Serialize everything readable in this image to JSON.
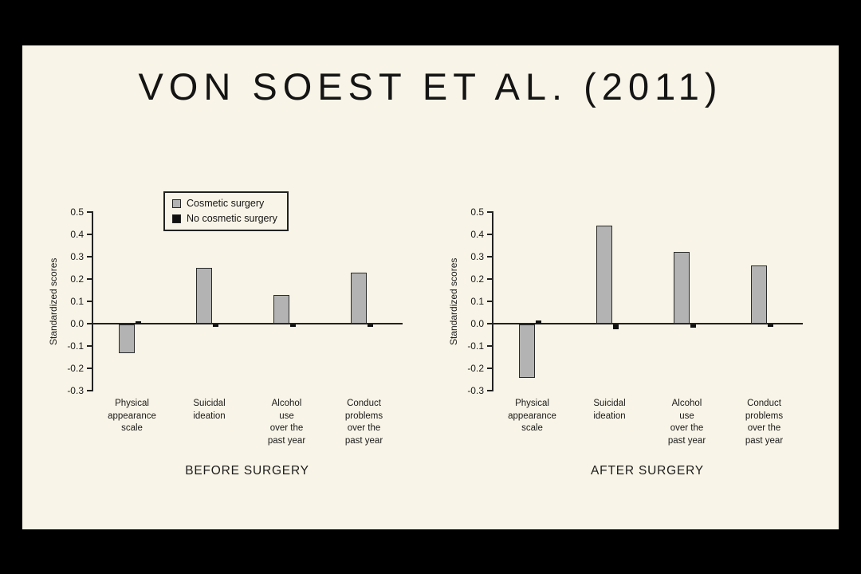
{
  "slide": {
    "title": "VON SOEST ET AL. (2011)"
  },
  "legend": {
    "items": [
      {
        "label": "Cosmetic surgery",
        "color": "#b3b3b3"
      },
      {
        "label": "No cosmetic surgery",
        "color": "#111111"
      }
    ]
  },
  "chart_data": [
    {
      "type": "bar",
      "title": "BEFORE SURGERY",
      "ylabel": "Standardized scores",
      "ylim": [
        -0.3,
        0.5
      ],
      "yticks": [
        "0.5",
        "0.4",
        "0.3",
        "0.2",
        "0.1",
        "0.0",
        "-0.1",
        "-0.2",
        "-0.3"
      ],
      "grid": false,
      "legend_visible": true,
      "legend_position": "top-inside",
      "categories": [
        "Physical\nappearance\nscale",
        "Suicidal\nideation",
        "Alcohol\nuse\nover the\npast year",
        "Conduct\nproblems\nover the\npast year"
      ],
      "series": [
        {
          "name": "Cosmetic surgery",
          "color": "#b3b3b3",
          "values": [
            -0.13,
            0.25,
            0.13,
            0.23
          ]
        },
        {
          "name": "No cosmetic surgery",
          "color": "#111111",
          "values": [
            0.01,
            -0.01,
            -0.01,
            -0.01
          ]
        }
      ]
    },
    {
      "type": "bar",
      "title": "AFTER SURGERY",
      "ylabel": "Standardized scores",
      "ylim": [
        -0.3,
        0.5
      ],
      "yticks": [
        "0.5",
        "0.4",
        "0.3",
        "0.2",
        "0.1",
        "0.0",
        "-0.1",
        "-0.2",
        "-0.3"
      ],
      "grid": false,
      "legend_visible": false,
      "categories": [
        "Physical\nappearance\nscale",
        "Suicidal\nideation",
        "Alcohol\nuse\nover the\npast year",
        "Conduct\nproblems\nover the\npast year"
      ],
      "series": [
        {
          "name": "Cosmetic surgery",
          "color": "#b3b3b3",
          "values": [
            -0.24,
            0.44,
            0.32,
            0.26
          ]
        },
        {
          "name": "No cosmetic surgery",
          "color": "#111111",
          "values": [
            0.015,
            -0.02,
            -0.015,
            -0.01
          ]
        }
      ]
    }
  ]
}
